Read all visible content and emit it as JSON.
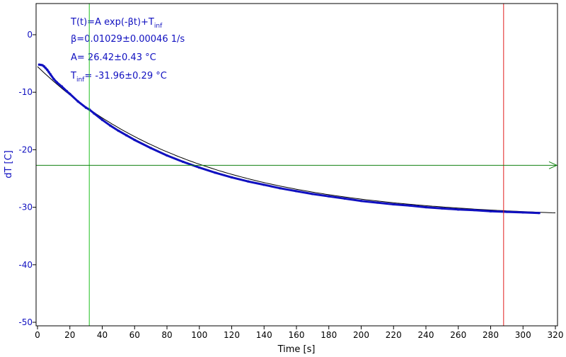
{
  "chart_data": {
    "type": "scatter",
    "xlabel": "Time [s]",
    "ylabel": "dT [C]",
    "xlim": [
      0,
      320
    ],
    "ylim": [
      -50,
      5
    ],
    "x_ticks": [
      0,
      20,
      40,
      60,
      80,
      100,
      120,
      140,
      160,
      180,
      200,
      220,
      240,
      260,
      280,
      300,
      320
    ],
    "y_ticks": [
      0,
      -10,
      -20,
      -30,
      -40,
      -50
    ],
    "grid": false,
    "fit_model": {
      "A": 26.42,
      "beta": 0.01029,
      "T_inf": -31.96
    },
    "annotations": [
      {
        "main": "T(t)=A exp(-βt)+T",
        "sub": "inf",
        "rest": ""
      },
      {
        "main": "β=0.01029±0.00046 1/s",
        "sub": "",
        "rest": ""
      },
      {
        "main": "A= 26.42±0.43 °C",
        "sub": "",
        "rest": ""
      },
      {
        "main": "T",
        "sub": "inf",
        "rest": "= -31.96±0.29 °C"
      }
    ],
    "markers": {
      "green_vertical_x": 32,
      "red_vertical_x": 288,
      "green_horizontal_y": -22.7
    },
    "series": [
      {
        "color": "#1010c0",
        "x": [
          1,
          2,
          3,
          4,
          5,
          6,
          7,
          8,
          10,
          12,
          15,
          18,
          20,
          25,
          30,
          32,
          35,
          40,
          45,
          50,
          55,
          60,
          70,
          80,
          90,
          100,
          110,
          120,
          130,
          140,
          150,
          160,
          170,
          180,
          190,
          200,
          210,
          220,
          230,
          240,
          250,
          260,
          270,
          280,
          290,
          300,
          310
        ],
        "values": [
          -5.2,
          -5.25,
          -5.3,
          -5.5,
          -5.8,
          -6.1,
          -6.5,
          -6.9,
          -7.7,
          -8.3,
          -9.0,
          -9.8,
          -10.3,
          -11.6,
          -12.7,
          -13.0,
          -13.7,
          -14.8,
          -15.8,
          -16.7,
          -17.5,
          -18.3,
          -19.7,
          -21.0,
          -22.1,
          -23.1,
          -24.0,
          -24.8,
          -25.5,
          -26.1,
          -26.7,
          -27.2,
          -27.7,
          -28.1,
          -28.5,
          -28.9,
          -29.2,
          -29.5,
          -29.7,
          -30.0,
          -30.2,
          -30.4,
          -30.5,
          -30.7,
          -30.8,
          -30.9,
          -31.0
        ]
      }
    ]
  }
}
